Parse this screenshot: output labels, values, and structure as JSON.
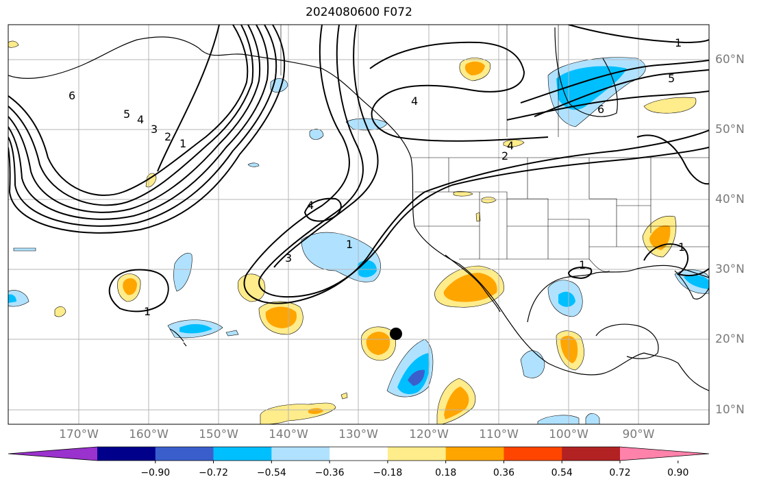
{
  "title": "2024080600 F072",
  "map": {
    "projection": "plate-carree",
    "lon_range": [
      -180,
      -80
    ],
    "lat_range": [
      8,
      65
    ],
    "longitude_labels": [
      "170°W",
      "160°W",
      "150°W",
      "140°W",
      "130°W",
      "120°W",
      "110°W",
      "100°W",
      "90°W"
    ],
    "latitude_labels": [
      "60°N",
      "50°N",
      "40°N",
      "30°N",
      "20°N",
      "10°N"
    ],
    "contour_labels": [
      "1",
      "2",
      "3",
      "4",
      "5",
      "6"
    ],
    "marker": {
      "type": "black-dot",
      "lon": -125,
      "lat": 21
    }
  },
  "colorbar": {
    "tick_labels": [
      "−0.90",
      "−0.72",
      "−0.54",
      "−0.36",
      "−0.18",
      "0.18",
      "0.36",
      "0.54",
      "0.72",
      "0.90"
    ],
    "colors": [
      "#9a32cd",
      "#00008b",
      "#3a5fcd",
      "#00bfff",
      "#b0e2ff",
      "#ffffff",
      "#ffec8b",
      "#ffa500",
      "#ff4500",
      "#b22222",
      "#ff82ab"
    ]
  },
  "chart_data": {
    "type": "heatmap",
    "title": "2024080600 F072",
    "levels": [
      -0.9,
      -0.72,
      -0.54,
      -0.36,
      -0.18,
      0.18,
      0.36,
      0.54,
      0.72,
      0.9
    ],
    "contour_levels": [
      1,
      2,
      3,
      4,
      5,
      6
    ],
    "xlim": [
      -180,
      -80
    ],
    "ylim": [
      8,
      65
    ],
    "grid": true
  }
}
